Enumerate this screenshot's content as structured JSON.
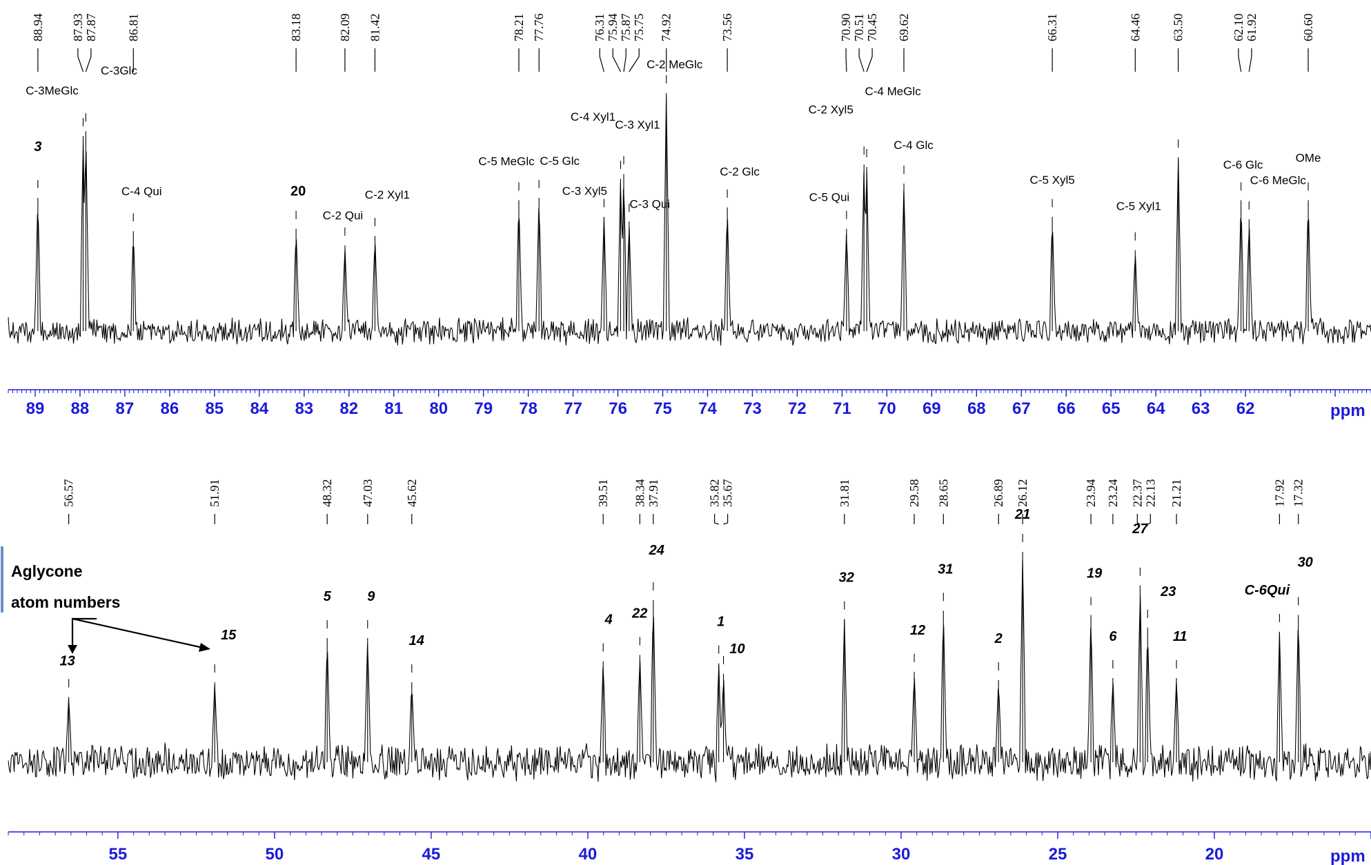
{
  "chart_data": [
    {
      "type": "nmr_spectrum",
      "xlabel": "ppm",
      "xlim": [
        89.6,
        59.2
      ],
      "ticks": [
        89,
        88,
        87,
        86,
        85,
        84,
        83,
        82,
        81,
        80,
        79,
        78,
        77,
        76,
        75,
        74,
        73,
        72,
        71,
        70,
        69,
        68,
        67,
        66,
        65,
        64,
        63,
        62
      ],
      "peaks": [
        {
          "shift": 88.94,
          "label": "88.94",
          "height": 0.56,
          "annotation": "3",
          "style": "atom"
        },
        {
          "shift": 87.93,
          "label": "87.93",
          "height": 0.82,
          "annotation": "C-3MeGlc",
          "style": "assign"
        },
        {
          "shift": 87.87,
          "label": "87.87",
          "height": 0.84,
          "annotation": "C-3Glc",
          "style": "assign"
        },
        {
          "shift": 86.81,
          "label": "86.81",
          "height": 0.42,
          "annotation": "C-4 Qui",
          "style": "assign"
        },
        {
          "shift": 83.18,
          "label": "83.18",
          "height": 0.43,
          "annotation": "20",
          "style": "bold"
        },
        {
          "shift": 82.09,
          "label": "82.09",
          "height": 0.36,
          "annotation": "C-2 Qui",
          "style": "assign"
        },
        {
          "shift": 81.42,
          "label": "81.42",
          "height": 0.4,
          "annotation": "C-2 Xyl1",
          "style": "assign"
        },
        {
          "shift": 78.21,
          "label": "78.21",
          "height": 0.55,
          "annotation": "C-5 MeGlc",
          "style": "assign"
        },
        {
          "shift": 77.76,
          "label": "77.76",
          "height": 0.56,
          "annotation": "C-5 Glc",
          "style": "assign"
        },
        {
          "shift": 76.31,
          "label": "76.31",
          "height": 0.48,
          "annotation": "C-3 Xyl5",
          "style": "assign"
        },
        {
          "shift": 75.94,
          "label": "75.94",
          "height": 0.64,
          "annotation": "C-4 Xyl1",
          "style": "assign"
        },
        {
          "shift": 75.87,
          "label": "75.87",
          "height": 0.66,
          "annotation": "C-3 Xyl1",
          "style": "assign"
        },
        {
          "shift": 75.75,
          "label": "75.75",
          "height": 0.46,
          "annotation": "C-3 Qui",
          "style": "assign"
        },
        {
          "shift": 74.92,
          "label": "74.92",
          "height": 1.0,
          "annotation": "C-2 MeGlc",
          "style": "assign"
        },
        {
          "shift": 73.56,
          "label": "73.56",
          "height": 0.52,
          "annotation": "C-2 Glc",
          "style": "assign"
        },
        {
          "shift": 70.9,
          "label": "70.90",
          "height": 0.43,
          "annotation": "C-5 Qui",
          "style": "assign"
        },
        {
          "shift": 70.51,
          "label": "70.51",
          "height": 0.7,
          "annotation": "C-2 Xyl5",
          "style": "assign"
        },
        {
          "shift": 70.45,
          "label": "70.45",
          "height": 0.69,
          "annotation": "C-4 MeGlc",
          "style": "assign"
        },
        {
          "shift": 69.62,
          "label": "69.62",
          "height": 0.62,
          "annotation": "C-4 Glc",
          "style": "assign"
        },
        {
          "shift": 66.31,
          "label": "66.31",
          "height": 0.48,
          "annotation": "C-5 Xyl5",
          "style": "assign"
        },
        {
          "shift": 64.46,
          "label": "64.46",
          "height": 0.34,
          "annotation": "C-5 Xyl1",
          "style": "assign"
        },
        {
          "shift": 63.5,
          "label": "63.50",
          "height": 0.73,
          "annotation": "",
          "style": "assign"
        },
        {
          "shift": 62.1,
          "label": "62.10",
          "height": 0.55,
          "annotation": "C-6 Glc",
          "style": "assign"
        },
        {
          "shift": 61.92,
          "label": "61.92",
          "height": 0.47,
          "annotation": "C-6 MeGlc",
          "style": "assign"
        },
        {
          "shift": 60.6,
          "label": "60.60",
          "height": 0.55,
          "annotation": "OMe",
          "style": "assign"
        }
      ],
      "xunit_label": "ppm"
    },
    {
      "type": "nmr_spectrum",
      "xlabel": "ppm",
      "xlim": [
        58.5,
        15.0
      ],
      "ticks": [
        55,
        50,
        45,
        40,
        35,
        30,
        25,
        20
      ],
      "peaks": [
        {
          "shift": 56.57,
          "label": "56.57",
          "height": 0.31,
          "annotation": "13"
        },
        {
          "shift": 51.91,
          "label": "51.91",
          "height": 0.38,
          "annotation": "15"
        },
        {
          "shift": 48.32,
          "label": "48.32",
          "height": 0.59,
          "annotation": "5"
        },
        {
          "shift": 47.03,
          "label": "47.03",
          "height": 0.59,
          "annotation": "9"
        },
        {
          "shift": 45.62,
          "label": "45.62",
          "height": 0.38,
          "annotation": "14"
        },
        {
          "shift": 39.51,
          "label": "39.51",
          "height": 0.48,
          "annotation": "4"
        },
        {
          "shift": 38.34,
          "label": "38.34",
          "height": 0.51,
          "annotation": "22"
        },
        {
          "shift": 37.91,
          "label": "37.91",
          "height": 0.77,
          "annotation": "24"
        },
        {
          "shift": 35.82,
          "label": "35.82",
          "height": 0.47,
          "annotation": "1"
        },
        {
          "shift": 35.67,
          "label": "35.67",
          "height": 0.42,
          "annotation": "10"
        },
        {
          "shift": 31.81,
          "label": "31.81",
          "height": 0.68,
          "annotation": "32"
        },
        {
          "shift": 29.58,
          "label": "29.58",
          "height": 0.43,
          "annotation": "12"
        },
        {
          "shift": 28.65,
          "label": "28.65",
          "height": 0.72,
          "annotation": "31"
        },
        {
          "shift": 26.89,
          "label": "26.89",
          "height": 0.39,
          "annotation": "2"
        },
        {
          "shift": 26.12,
          "label": "26.12",
          "height": 1.0,
          "annotation": "21"
        },
        {
          "shift": 23.94,
          "label": "23.94",
          "height": 0.7,
          "annotation": "19"
        },
        {
          "shift": 23.24,
          "label": "23.24",
          "height": 0.4,
          "annotation": "6"
        },
        {
          "shift": 22.37,
          "label": "22.37",
          "height": 0.84,
          "annotation": "27"
        },
        {
          "shift": 22.13,
          "label": "22.13",
          "height": 0.64,
          "annotation": "23"
        },
        {
          "shift": 21.21,
          "label": "21.21",
          "height": 0.4,
          "annotation": "11"
        },
        {
          "shift": 17.92,
          "label": "17.92",
          "height": 0.62,
          "annotation": "C-6Qui"
        },
        {
          "shift": 17.32,
          "label": "17.32",
          "height": 0.7,
          "annotation": "30"
        }
      ],
      "xunit_label": "ppm",
      "note": [
        "Aglycone",
        "atom numbers"
      ]
    }
  ]
}
